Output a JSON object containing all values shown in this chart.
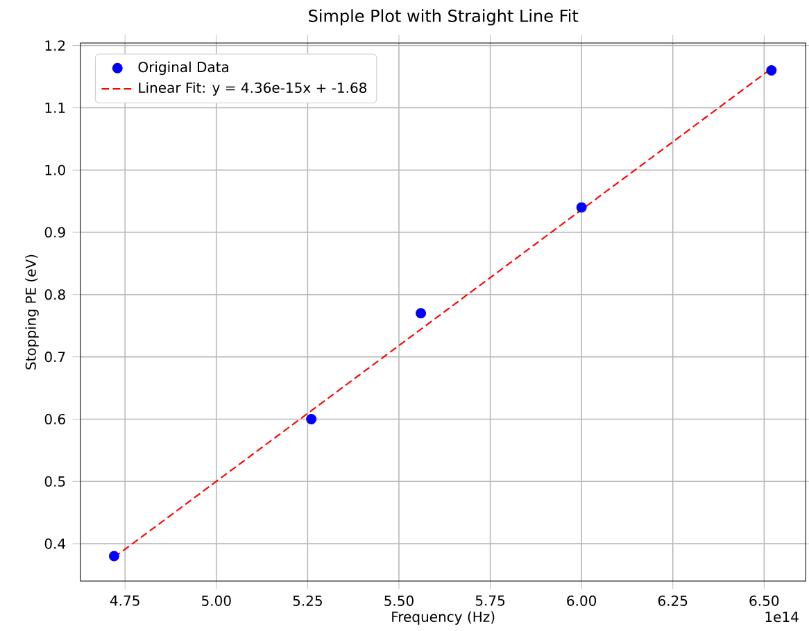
{
  "chart_data": {
    "type": "scatter",
    "title": "Simple Plot with Straight Line Fit",
    "xlabel": "Frequency  (Hz)",
    "ylabel": "Stopping PE  (eV)",
    "annotations": [
      "1e14"
    ],
    "series": [
      {
        "name": "Original Data",
        "color": "#0000ff",
        "marker": "circle",
        "x": [
          4.72,
          5.26,
          5.56,
          6.0,
          6.52
        ],
        "values": [
          0.38,
          0.6,
          0.77,
          0.94,
          1.16
        ]
      },
      {
        "name": "Linear Fit: y = 4.36e-15x + -1.68",
        "type": "line",
        "color": "#ff0000",
        "line_style": "dashed",
        "marker": "none",
        "x": [
          4.72,
          6.52
        ],
        "values": [
          0.378,
          1.163
        ]
      }
    ],
    "xlim": [
      4.628,
      6.614
    ],
    "ylim": [
      0.34,
      1.204
    ],
    "xticks": [
      {
        "value": 4.75,
        "label": "4.75"
      },
      {
        "value": 5.0,
        "label": "5.00"
      },
      {
        "value": 5.25,
        "label": "5.25"
      },
      {
        "value": 5.5,
        "label": "5.50"
      },
      {
        "value": 5.75,
        "label": "5.75"
      },
      {
        "value": 6.0,
        "label": "6.00"
      },
      {
        "value": 6.25,
        "label": "6.25"
      },
      {
        "value": 6.5,
        "label": "6.50"
      }
    ],
    "yticks": [
      {
        "value": 0.4,
        "label": "0.4"
      },
      {
        "value": 0.5,
        "label": "0.5"
      },
      {
        "value": 0.6,
        "label": "0.6"
      },
      {
        "value": 0.7,
        "label": "0.7"
      },
      {
        "value": 0.8,
        "label": "0.8"
      },
      {
        "value": 0.9,
        "label": "0.9"
      },
      {
        "value": 1.0,
        "label": "1.0"
      },
      {
        "value": 1.1,
        "label": "1.1"
      },
      {
        "value": 1.2,
        "label": "1.2"
      }
    ],
    "grid": true,
    "legend": "top left"
  }
}
